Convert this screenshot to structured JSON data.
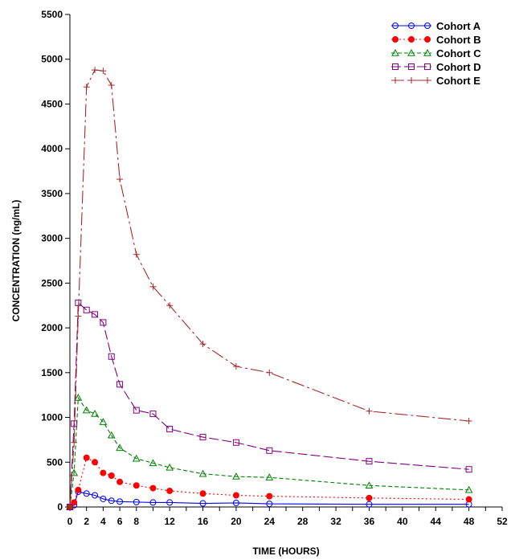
{
  "chart_data": {
    "type": "line",
    "xlabel": "TIME (HOURS)",
    "ylabel": "CONCENTRATION (ng/mL)",
    "xlim": [
      0,
      52
    ],
    "ylim": [
      0,
      5500
    ],
    "x_ticks": [
      "0",
      "2",
      "4",
      "6",
      "8",
      "12",
      "16",
      "20",
      "24",
      "28",
      "32",
      "36",
      "40",
      "44",
      "48",
      "52"
    ],
    "x_tick_values": [
      0,
      2,
      4,
      6,
      8,
      12,
      16,
      20,
      24,
      28,
      32,
      36,
      40,
      44,
      48,
      52
    ],
    "x_ticks_all": [
      0,
      2,
      4,
      6,
      8,
      10,
      12,
      14,
      16,
      18,
      20,
      22,
      24,
      26,
      28,
      30,
      32,
      34,
      36,
      38,
      40,
      42,
      44,
      46,
      48,
      50,
      52
    ],
    "y_ticks": [
      "0",
      "500",
      "1000",
      "1500",
      "2000",
      "2500",
      "3000",
      "3500",
      "4000",
      "4500",
      "5000",
      "5500"
    ],
    "y_tick_values": [
      0,
      500,
      1000,
      1500,
      2000,
      2500,
      3000,
      3500,
      4000,
      4500,
      5000,
      5500
    ],
    "grid": false,
    "legend_position": "top-right",
    "series": [
      {
        "name": "Cohort  A",
        "color": "#0000ff",
        "marker": "circle",
        "dash": "solid",
        "x": [
          0,
          0.5,
          1,
          2,
          3,
          4,
          5,
          6,
          8,
          10,
          12,
          16,
          20,
          24,
          36,
          48
        ],
        "y": [
          0,
          20,
          170,
          150,
          130,
          90,
          70,
          60,
          55,
          50,
          50,
          40,
          45,
          35,
          30,
          30
        ]
      },
      {
        "name": "Cohort  B",
        "color": "#ff0000",
        "marker": "dot",
        "dash": "dotted",
        "x": [
          0,
          0.5,
          1,
          2,
          3,
          4,
          5,
          6,
          8,
          10,
          12,
          16,
          20,
          24,
          36,
          48
        ],
        "y": [
          0,
          50,
          190,
          550,
          500,
          380,
          350,
          280,
          240,
          210,
          180,
          150,
          130,
          120,
          100,
          85
        ]
      },
      {
        "name": "Cohort  C",
        "color": "#008000",
        "marker": "triangle",
        "dash": "dashed",
        "x": [
          0,
          0.5,
          1,
          2,
          3,
          4,
          5,
          6,
          8,
          10,
          12,
          16,
          20,
          24,
          36,
          48
        ],
        "y": [
          0,
          380,
          1220,
          1080,
          1040,
          950,
          800,
          660,
          540,
          490,
          440,
          370,
          340,
          330,
          240,
          190
        ]
      },
      {
        "name": "Cohort  D",
        "color": "#800080",
        "marker": "square",
        "dash": "longdash",
        "x": [
          0,
          0.5,
          1,
          2,
          3,
          4,
          5,
          6,
          8,
          10,
          12,
          16,
          20,
          24,
          36,
          48
        ],
        "y": [
          0,
          930,
          2280,
          2200,
          2150,
          2060,
          1680,
          1370,
          1080,
          1040,
          870,
          780,
          720,
          630,
          510,
          420
        ]
      },
      {
        "name": "Cohort  E",
        "color": "#a52a2a",
        "marker": "plus",
        "dash": "longdashdot",
        "x": [
          0,
          0.5,
          1,
          2,
          3,
          4,
          5,
          6,
          8,
          10,
          12,
          16,
          20,
          24,
          36,
          48
        ],
        "y": [
          0,
          720,
          2130,
          4690,
          4880,
          4870,
          4710,
          3660,
          2820,
          2460,
          2250,
          1820,
          1570,
          1500,
          1070,
          960
        ]
      }
    ]
  }
}
